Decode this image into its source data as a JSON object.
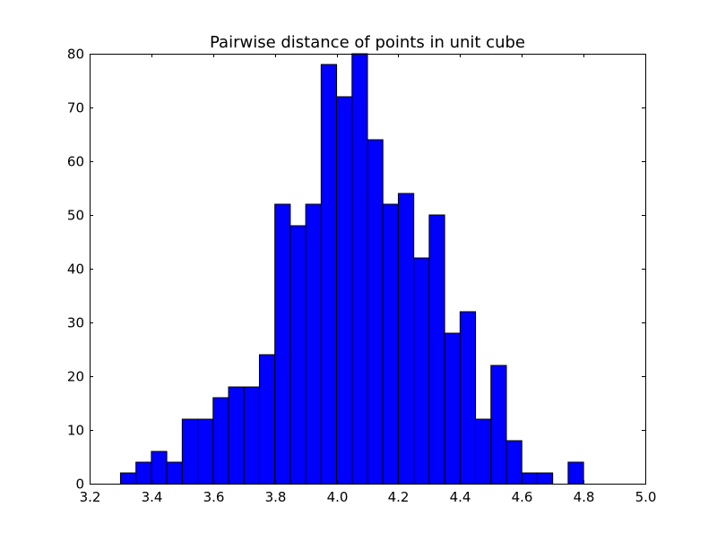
{
  "chart_data": {
    "type": "bar",
    "title": "Pairwise distance of points in unit cube",
    "xlabel": "",
    "ylabel": "",
    "xlim": [
      3.2,
      5.0
    ],
    "ylim": [
      0,
      80
    ],
    "xticks": [
      "3.2",
      "3.4",
      "3.6",
      "3.8",
      "4.0",
      "4.2",
      "4.4",
      "4.6",
      "4.8",
      "5.0"
    ],
    "yticks": [
      "0",
      "10",
      "20",
      "30",
      "40",
      "50",
      "60",
      "70",
      "80"
    ],
    "bar_color": "#0000ff",
    "edge_color": "#000000",
    "grid": false,
    "bins": [
      {
        "x0": 3.3,
        "x1": 3.35,
        "count": 2
      },
      {
        "x0": 3.35,
        "x1": 3.4,
        "count": 4
      },
      {
        "x0": 3.4,
        "x1": 3.45,
        "count": 6
      },
      {
        "x0": 3.45,
        "x1": 3.5,
        "count": 4
      },
      {
        "x0": 3.5,
        "x1": 3.55,
        "count": 12
      },
      {
        "x0": 3.55,
        "x1": 3.6,
        "count": 12
      },
      {
        "x0": 3.6,
        "x1": 3.65,
        "count": 16
      },
      {
        "x0": 3.65,
        "x1": 3.7,
        "count": 18
      },
      {
        "x0": 3.7,
        "x1": 3.75,
        "count": 18
      },
      {
        "x0": 3.75,
        "x1": 3.8,
        "count": 24
      },
      {
        "x0": 3.8,
        "x1": 3.85,
        "count": 52
      },
      {
        "x0": 3.85,
        "x1": 3.9,
        "count": 48
      },
      {
        "x0": 3.9,
        "x1": 3.95,
        "count": 52
      },
      {
        "x0": 3.95,
        "x1": 4.0,
        "count": 78
      },
      {
        "x0": 4.0,
        "x1": 4.05,
        "count": 72
      },
      {
        "x0": 4.05,
        "x1": 4.1,
        "count": 80
      },
      {
        "x0": 4.1,
        "x1": 4.15,
        "count": 64
      },
      {
        "x0": 4.15,
        "x1": 4.2,
        "count": 52
      },
      {
        "x0": 4.2,
        "x1": 4.25,
        "count": 54
      },
      {
        "x0": 4.25,
        "x1": 4.3,
        "count": 42
      },
      {
        "x0": 4.3,
        "x1": 4.35,
        "count": 50
      },
      {
        "x0": 4.35,
        "x1": 4.4,
        "count": 28
      },
      {
        "x0": 4.4,
        "x1": 4.45,
        "count": 32
      },
      {
        "x0": 4.45,
        "x1": 4.5,
        "count": 12
      },
      {
        "x0": 4.5,
        "x1": 4.55,
        "count": 22
      },
      {
        "x0": 4.55,
        "x1": 4.6,
        "count": 8
      },
      {
        "x0": 4.6,
        "x1": 4.65,
        "count": 2
      },
      {
        "x0": 4.65,
        "x1": 4.7,
        "count": 2
      },
      {
        "x0": 4.7,
        "x1": 4.75,
        "count": 0
      },
      {
        "x0": 4.75,
        "x1": 4.8,
        "count": 4
      },
      {
        "x0": 4.8,
        "x1": 4.85,
        "count": 0
      }
    ]
  }
}
